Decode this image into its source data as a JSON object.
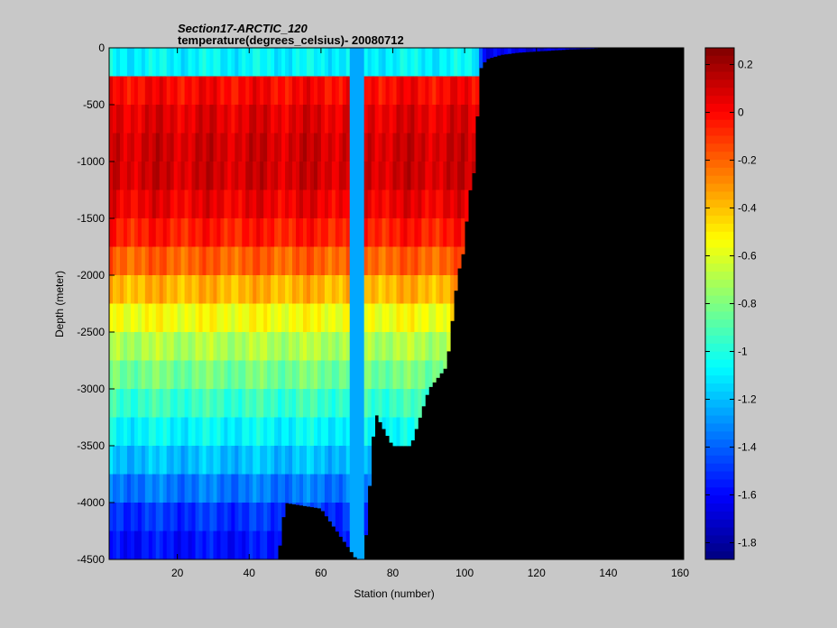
{
  "chart_data": {
    "type": "heatmap",
    "title": "Section17-ARCTIC_120",
    "subtitle": "temperature(degrees_celsius)- 20080712",
    "xlabel": "Station (number)",
    "ylabel": "Depth (meter)",
    "xlim": [
      1,
      161
    ],
    "ylim": [
      -4500,
      0
    ],
    "x_ticks": [
      20,
      40,
      60,
      80,
      100,
      120,
      140,
      160
    ],
    "y_ticks": [
      0,
      -500,
      -1000,
      -1500,
      -2000,
      -2500,
      -3000,
      -3500,
      -4000,
      -4500
    ],
    "colorbar": {
      "min": -1.87,
      "max": 0.27,
      "ticks": [
        0.2,
        0,
        -0.2,
        -0.4,
        -0.6,
        -0.8,
        -1,
        -1.2,
        -1.4,
        -1.6,
        -1.8
      ],
      "colormap": "jet"
    },
    "no_data_color": "#000000",
    "depth_levels": [
      0,
      -250,
      -500,
      -750,
      -1000,
      -1250,
      -1500,
      -1750,
      -2000,
      -2250,
      -2500,
      -2750,
      -3000,
      -3250,
      -3500,
      -3750,
      -4000,
      -4250,
      -4500
    ],
    "bathymetry": {
      "station": [
        1,
        48,
        50,
        60,
        70,
        72,
        75,
        80,
        85,
        90,
        95,
        98,
        100,
        101,
        102,
        103,
        104,
        106,
        110,
        115,
        120,
        125,
        130,
        136,
        137,
        161
      ],
      "depth": [
        -4500,
        -4500,
        -4000,
        -4050,
        -4500,
        -4500,
        -3200,
        -3500,
        -3500,
        -3000,
        -2800,
        -2000,
        -1750,
        -1300,
        -1200,
        -1000,
        -200,
        -100,
        -60,
        -40,
        -30,
        -20,
        -10,
        -5,
        0,
        0
      ]
    },
    "anomaly_column": {
      "station_range": [
        68,
        72
      ],
      "value": -1.25
    },
    "profile": [
      {
        "depth": 0,
        "value": -1.7
      },
      {
        "depth": -75,
        "value": -1.55
      },
      {
        "depth": -150,
        "value": -0.85
      },
      {
        "depth": -250,
        "value": -0.05
      },
      {
        "depth": -500,
        "value": 0.05
      },
      {
        "depth": -750,
        "value": 0.08
      },
      {
        "depth": -1000,
        "value": 0.12
      },
      {
        "depth": -1250,
        "value": 0.08
      },
      {
        "depth": -1500,
        "value": 0.0
      },
      {
        "depth": -1750,
        "value": -0.1
      },
      {
        "depth": -2000,
        "value": -0.3
      },
      {
        "depth": -2250,
        "value": -0.45
      },
      {
        "depth": -2500,
        "value": -0.65
      },
      {
        "depth": -2750,
        "value": -0.75
      },
      {
        "depth": -3000,
        "value": -0.9
      },
      {
        "depth": -3250,
        "value": -1.0
      },
      {
        "depth": -3500,
        "value": -1.15
      },
      {
        "depth": -3750,
        "value": -1.25
      },
      {
        "depth": -4000,
        "value": -1.45
      },
      {
        "depth": -4250,
        "value": -1.55
      },
      {
        "depth": -4500,
        "value": -1.6
      }
    ]
  }
}
